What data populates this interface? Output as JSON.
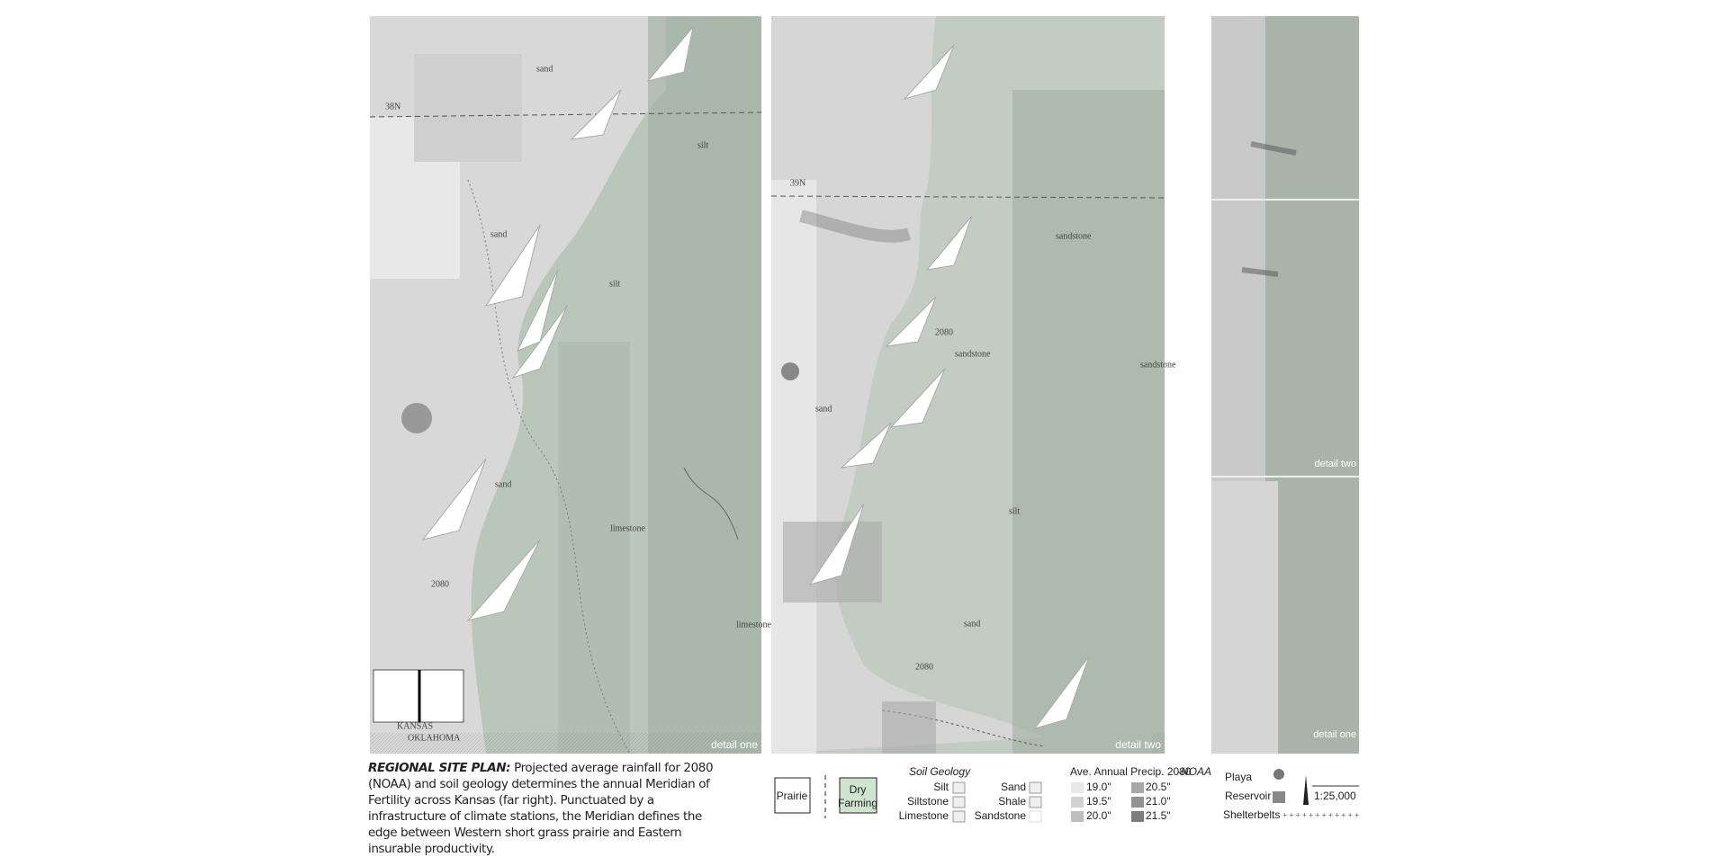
{
  "panels": [
    {
      "label": "detail one",
      "annotations": [
        "38N",
        "sand",
        "silt",
        "sand",
        "silt",
        "sand",
        "limestone",
        "2080",
        "limestone",
        "KANSAS",
        "OKLAHOMA"
      ]
    },
    {
      "label": "detail two",
      "annotations": [
        "39N",
        "sandstone",
        "sandstone",
        "sandstone",
        "sand",
        "silt",
        "sand",
        "2080",
        "2080"
      ]
    },
    {
      "labels": [
        "detail two",
        "detail one"
      ]
    }
  ],
  "caption": {
    "title": "REGIONAL SITE PLAN:",
    "text": "Projected average rainfall for 2080 (NOAA) and soil geology determines the annual Meridian of Fertility across Kansas (far right). Punctuated by a infrastructure of climate stations, the Meridian defines the edge between Western short grass prairie and Eastern insurable productivity."
  },
  "legend": {
    "zones": [
      "Prairie",
      "Dry Farming"
    ],
    "soil": {
      "title": "Soil Geology",
      "items": [
        "Silt",
        "Siltstone",
        "Limestone",
        "Sand",
        "Shale",
        "Sandstone"
      ]
    },
    "precip": {
      "title": "Ave. Annual Precip. 2080",
      "source": "-NOAA",
      "items": [
        "19.0\"",
        "19.5\"",
        "20.0\"",
        "20.5\"",
        "21.0\"",
        "21.5\""
      ]
    },
    "features": [
      "Playa",
      "Reservoir",
      "Shelterbelts"
    ],
    "scale": "1:25,000"
  }
}
